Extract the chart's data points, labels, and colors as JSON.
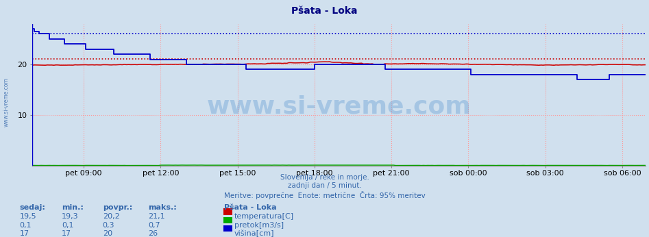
{
  "title": "Pšata - Loka",
  "title_color": "#000080",
  "title_fontsize": 10,
  "bg_color": "#d0e0ee",
  "plot_bg_color": "#d0e0ee",
  "xlim": [
    0,
    287
  ],
  "ylim": [
    0,
    28
  ],
  "yticks": [
    10,
    20
  ],
  "x_tick_positions": [
    24,
    60,
    96,
    132,
    168,
    204,
    240,
    276
  ],
  "x_tick_labels": [
    "pet 09:00",
    "pet 12:00",
    "pet 15:00",
    "pet 18:00",
    "pet 21:00",
    "sob 00:00",
    "sob 03:00",
    "sob 06:00"
  ],
  "grid_color": "#ff9999",
  "grid_style": ":",
  "temp_color": "#cc0000",
  "flow_color": "#00aa00",
  "height_color": "#0000cc",
  "ref_temp": 21.1,
  "ref_height": 26.0,
  "watermark": "www.si-vreme.com",
  "watermark_color": "#4488cc",
  "watermark_alpha": 0.3,
  "subtitle1": "Slovenija / reke in morje.",
  "subtitle2": "zadnji dan / 5 minut.",
  "subtitle3": "Meritve: povprečne  Enote: metrične  Črta: 95% meritev",
  "subtitle_color": "#3366aa",
  "legend_title": "Pšata - Loka",
  "legend_items": [
    {
      "label": "temperatura[C]",
      "color": "#cc0000"
    },
    {
      "label": "pretok[m3/s]",
      "color": "#00aa00"
    },
    {
      "label": "višina[cm]",
      "color": "#0000cc"
    }
  ],
  "stats_headers": [
    "sedaj:",
    "min.:",
    "povpr.:",
    "maks.:"
  ],
  "stats_values": [
    [
      "19,5",
      "19,3",
      "20,2",
      "21,1"
    ],
    [
      "0,1",
      "0,1",
      "0,3",
      "0,7"
    ],
    [
      "17",
      "17",
      "20",
      "26"
    ]
  ],
  "left_label": "www.si-vreme.com",
  "left_label_color": "#3366aa"
}
